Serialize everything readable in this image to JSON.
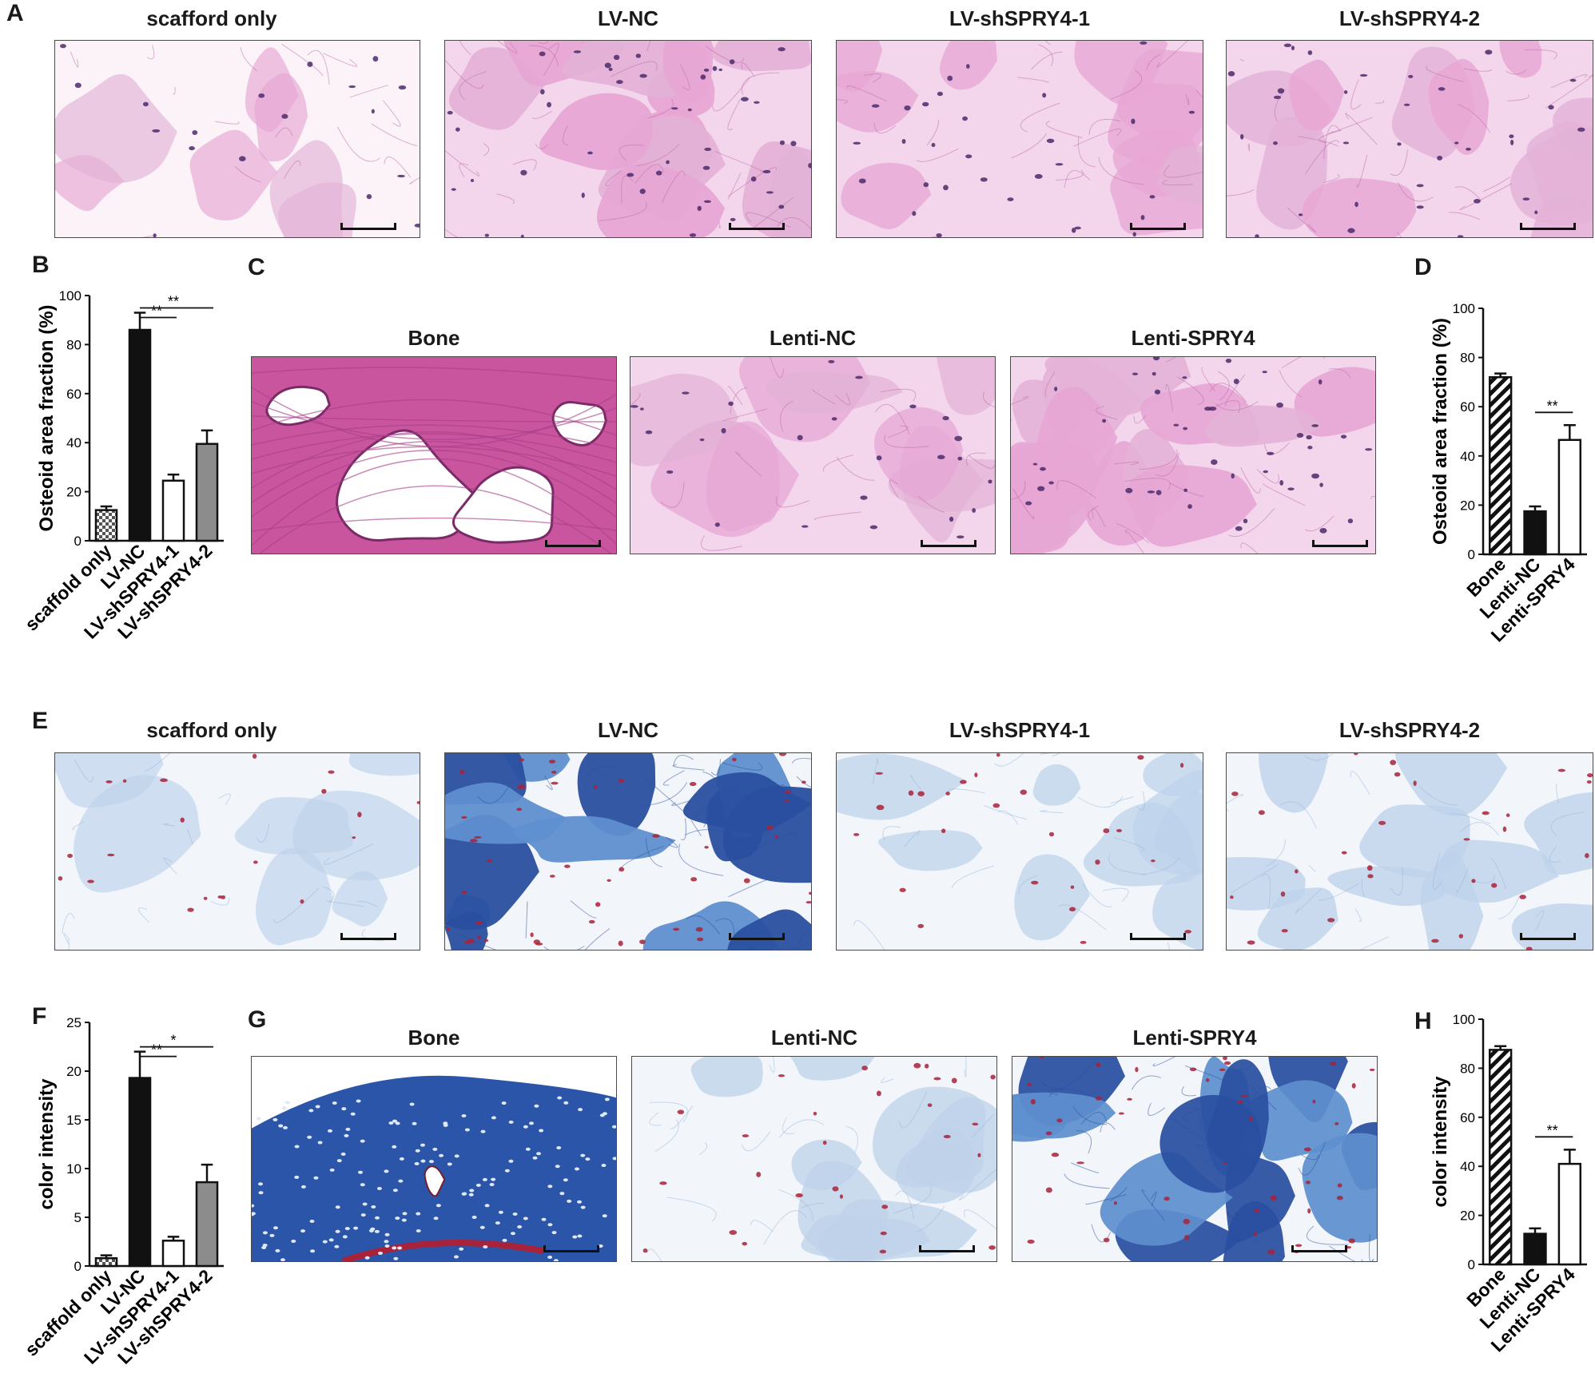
{
  "colors": {
    "he_bg": "#f3d6ec",
    "he_pink": "#e7a6d4",
    "he_dark": "#c06aaa",
    "he_nuc": "#4b2a6b",
    "mt_bg": "#f2f6fb",
    "mt_light": "#bdd2ea",
    "mt_blue": "#5f8fcf",
    "mt_dark": "#2a4fa0",
    "mt_red": "#a8223a",
    "bar_black": "#111111",
    "bar_gray": "#8c8c8c",
    "bar_check": "#555555"
  },
  "panels": {
    "A": {
      "letter": "A",
      "titles": [
        "scafford only",
        "LV-NC",
        "LV-shSPRY4-1",
        "LV-shSPRY4-2"
      ]
    },
    "B": {
      "letter": "B"
    },
    "C": {
      "letter": "C",
      "titles": [
        "Bone",
        "Lenti-NC",
        "Lenti-SPRY4"
      ]
    },
    "D": {
      "letter": "D"
    },
    "E": {
      "letter": "E",
      "titles": [
        "scafford only",
        "LV-NC",
        "LV-shSPRY4-1",
        "LV-shSPRY4-2"
      ]
    },
    "F": {
      "letter": "F"
    },
    "G": {
      "letter": "G",
      "titles": [
        "Bone",
        "Lenti-NC",
        "Lenti-SPRY4"
      ]
    },
    "H": {
      "letter": "H"
    }
  },
  "chart_data": [
    {
      "id": "B",
      "type": "bar",
      "ylabel": "Osteoid area fraction (%)",
      "ylim": [
        0,
        100
      ],
      "yticks": [
        0,
        20,
        40,
        60,
        80,
        100
      ],
      "categories": [
        "scaffold only",
        "LV-NC",
        "LV-shSPRY4-1",
        "LV-shSPRY4-2"
      ],
      "values": [
        12.5,
        86,
        24.5,
        39.5
      ],
      "errors": [
        1.5,
        7,
        2.5,
        5.5
      ],
      "fills": [
        "checker",
        "black",
        "white",
        "gray"
      ],
      "annotations": [
        {
          "from": 1,
          "to": 2,
          "label": "**"
        },
        {
          "from": 1,
          "to": 3,
          "label": "**"
        }
      ]
    },
    {
      "id": "D",
      "type": "bar",
      "ylabel": "Osteoid area fraction (%)",
      "ylim": [
        0,
        100
      ],
      "yticks": [
        0,
        20,
        40,
        60,
        80,
        100
      ],
      "categories": [
        "Bone",
        "Lenti-NC",
        "Lenti-SPRY4"
      ],
      "values": [
        72,
        17.5,
        46.5
      ],
      "errors": [
        1.5,
        2,
        6
      ],
      "fills": [
        "hatch",
        "black",
        "white"
      ],
      "annotations": [
        {
          "from": 1,
          "to": 2,
          "label": "**"
        }
      ]
    },
    {
      "id": "F",
      "type": "bar",
      "ylabel": "color intensity",
      "ylim": [
        0,
        25
      ],
      "yticks": [
        0,
        5,
        10,
        15,
        20,
        25
      ],
      "categories": [
        "scaffold only",
        "LV-NC",
        "LV-shSPRY4-1",
        "LV-shSPRY4-2"
      ],
      "values": [
        0.8,
        19.3,
        2.6,
        8.6
      ],
      "errors": [
        0.3,
        2.7,
        0.4,
        1.8
      ],
      "fills": [
        "checker",
        "black",
        "white",
        "gray"
      ],
      "annotations": [
        {
          "from": 1,
          "to": 2,
          "label": "**"
        },
        {
          "from": 1,
          "to": 3,
          "label": "*"
        }
      ]
    },
    {
      "id": "H",
      "type": "bar",
      "ylabel": "color intensity",
      "ylim": [
        0,
        100
      ],
      "yticks": [
        0,
        20,
        40,
        60,
        80,
        100
      ],
      "categories": [
        "Bone",
        "Lenti-NC",
        "Lenti-SPRY4"
      ],
      "values": [
        87.5,
        12.5,
        41
      ],
      "errors": [
        1.5,
        2.2,
        5.8
      ],
      "fills": [
        "hatch",
        "black",
        "white"
      ],
      "annotations": [
        {
          "from": 1,
          "to": 2,
          "label": "**"
        }
      ]
    }
  ]
}
